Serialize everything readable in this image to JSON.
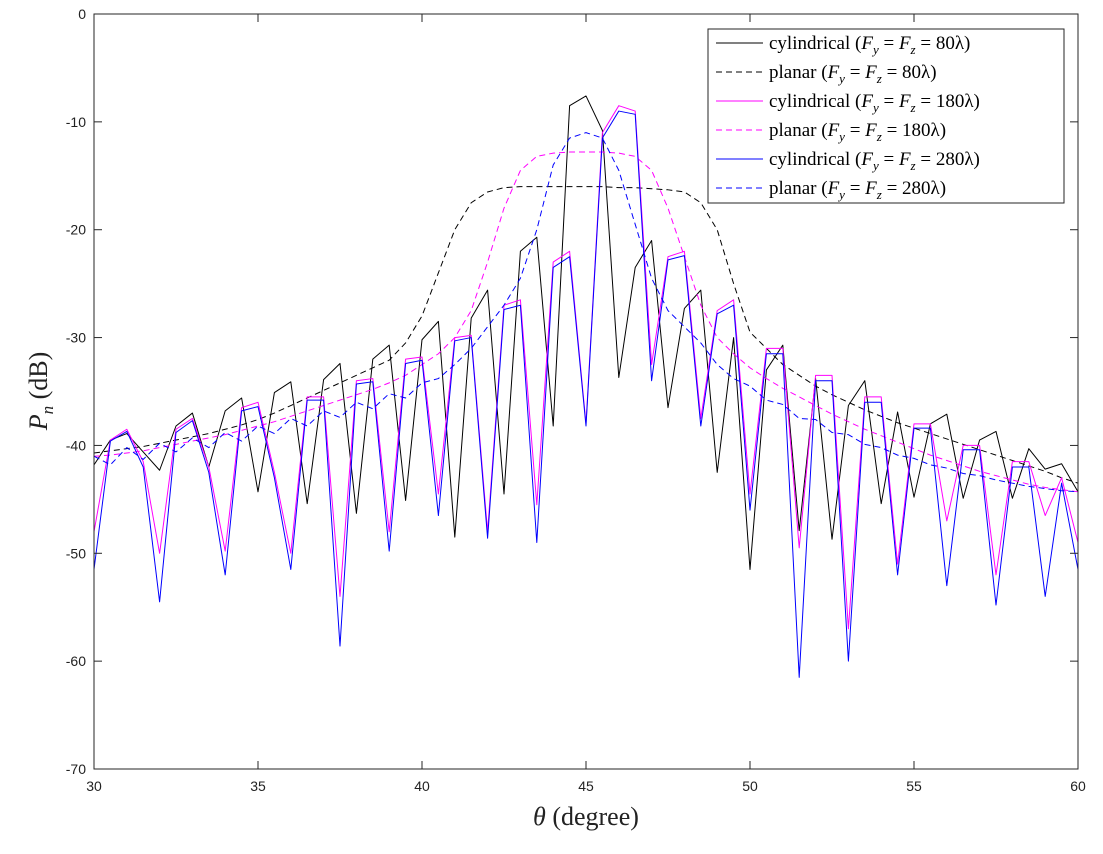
{
  "chart_data": {
    "type": "line",
    "xlabel": "θ (degree)",
    "ylabel": "P_n (dB)",
    "xlim": [
      30,
      60
    ],
    "ylim": [
      -70,
      0
    ],
    "xticks": [
      "30",
      "35",
      "40",
      "45",
      "50",
      "55",
      "60"
    ],
    "yticks": [
      "0",
      "-10",
      "-20",
      "-30",
      "-40",
      "-50",
      "-60",
      "-70"
    ],
    "grid": false,
    "legend_position": "top-right",
    "x": [
      30,
      30.5,
      31,
      31.5,
      32,
      32.5,
      33,
      33.5,
      34,
      34.5,
      35,
      35.5,
      36,
      36.5,
      37,
      37.5,
      38,
      38.5,
      39,
      39.5,
      40,
      40.5,
      41,
      41.5,
      42,
      42.5,
      43,
      43.5,
      44,
      44.5,
      45,
      45.5,
      46,
      46.5,
      47,
      47.5,
      48,
      48.5,
      49,
      49.5,
      50,
      50.5,
      51,
      51.5,
      52,
      52.5,
      53,
      53.5,
      54,
      54.5,
      55,
      55.5,
      56,
      56.5,
      57,
      57.5,
      58,
      58.5,
      59,
      59.5,
      60
    ],
    "series": [
      {
        "name": "cylindrical (F_y = F_z = 80λ)",
        "color": "#000000",
        "dash": "solid",
        "y": [
          -41.8,
          -39.5,
          -38.9,
          -40.6,
          -42.3,
          -38.2,
          -37.0,
          -42.0,
          -36.8,
          -35.6,
          -44.3,
          -35.1,
          -34.1,
          -45.4,
          -33.9,
          -32.4,
          -46.3,
          -32.0,
          -30.7,
          -45.1,
          -30.2,
          -28.5,
          -48.5,
          -28.2,
          -25.6,
          -44.5,
          -22.0,
          -20.7,
          -38.2,
          -8.5,
          -7.6,
          -10.8,
          -33.7,
          -23.5,
          -21.0,
          -36.5,
          -27.3,
          -25.6,
          -42.5,
          -30.0,
          -51.5,
          -33.0,
          -30.7,
          -47.9,
          -33.8,
          -48.7,
          -36.3,
          -34.0,
          -45.4,
          -36.9,
          -44.8,
          -38.0,
          -37.1,
          -44.9,
          -39.5,
          -38.7,
          -44.9,
          -40.3,
          -42.2,
          -41.7,
          -44.3
        ]
      },
      {
        "name": "planar (F_y = F_z = 80λ)",
        "color": "#000000",
        "dash": "dashed",
        "y": [
          -40.7,
          -40.5,
          -40.3,
          -40.1,
          -39.8,
          -39.5,
          -39.2,
          -38.9,
          -38.5,
          -38.1,
          -37.6,
          -37.0,
          -36.3,
          -35.6,
          -34.9,
          -34.2,
          -33.5,
          -32.8,
          -32.1,
          -30.5,
          -28.0,
          -24.0,
          -20.0,
          -17.5,
          -16.5,
          -16.1,
          -16.0,
          -16.0,
          -16.0,
          -16.0,
          -16.0,
          -16.0,
          -16.1,
          -16.1,
          -16.2,
          -16.3,
          -16.5,
          -17.5,
          -20.0,
          -25.0,
          -29.5,
          -31.0,
          -32.5,
          -33.5,
          -34.5,
          -35.3,
          -36.0,
          -36.7,
          -37.3,
          -37.9,
          -38.4,
          -38.9,
          -39.4,
          -39.9,
          -40.4,
          -40.9,
          -41.4,
          -41.9,
          -42.4,
          -43.0,
          -43.5
        ]
      },
      {
        "name": "cylindrical (F_y = F_z = 180λ)",
        "color": "#ff00ff",
        "dash": "solid",
        "y": [
          -48.0,
          -39.5,
          -38.5,
          -41.5,
          -50.0,
          -38.5,
          -37.5,
          -42.0,
          -49.8,
          -36.5,
          -36.0,
          -42.5,
          -50.0,
          -35.5,
          -35.5,
          -54.0,
          -34.0,
          -33.8,
          -48.0,
          -32.0,
          -31.8,
          -44.5,
          -30.0,
          -29.8,
          -48.0,
          -27.0,
          -26.5,
          -45.5,
          -23.0,
          -22.0,
          -38.0,
          -11.0,
          -8.5,
          -9.0,
          -32.5,
          -22.5,
          -22.0,
          -37.5,
          -27.5,
          -26.5,
          -44.5,
          -31.0,
          -31.0,
          -49.5,
          -33.5,
          -33.5,
          -57.0,
          -35.5,
          -35.5,
          -51.0,
          -38.0,
          -38.0,
          -47.0,
          -40.0,
          -40.0,
          -52.0,
          -41.5,
          -41.5,
          -46.5,
          -43.0,
          -49.0
        ]
      },
      {
        "name": "planar (F_y = F_z = 180λ)",
        "color": "#ff00ff",
        "dash": "dashed",
        "y": [
          -41.0,
          -40.9,
          -40.7,
          -40.5,
          -40.2,
          -39.9,
          -39.6,
          -39.3,
          -39.0,
          -38.6,
          -38.2,
          -37.8,
          -37.3,
          -36.8,
          -36.3,
          -35.8,
          -35.3,
          -34.8,
          -34.2,
          -33.5,
          -32.5,
          -31.5,
          -30.0,
          -27.5,
          -23.0,
          -18.0,
          -14.5,
          -13.2,
          -12.9,
          -12.8,
          -12.8,
          -12.8,
          -12.9,
          -13.2,
          -14.5,
          -18.0,
          -22.5,
          -27.0,
          -30.0,
          -31.5,
          -32.8,
          -33.8,
          -34.7,
          -35.5,
          -36.3,
          -37.1,
          -37.8,
          -38.5,
          -39.1,
          -39.7,
          -40.3,
          -40.9,
          -41.4,
          -41.9,
          -42.4,
          -42.8,
          -43.2,
          -43.6,
          -43.9,
          -44.1,
          -44.3
        ]
      },
      {
        "name": "cylindrical (F_y = F_z = 280λ)",
        "color": "#0000ff",
        "dash": "solid",
        "y": [
          -51.5,
          -39.6,
          -38.7,
          -42.0,
          -54.5,
          -38.8,
          -37.7,
          -42.5,
          -52.0,
          -36.8,
          -36.4,
          -43.0,
          -51.5,
          -35.8,
          -35.8,
          -58.6,
          -34.3,
          -34.1,
          -49.8,
          -32.4,
          -32.1,
          -46.5,
          -30.3,
          -30.0,
          -48.6,
          -27.4,
          -27.0,
          -49.0,
          -23.5,
          -22.5,
          -38.2,
          -11.5,
          -9.0,
          -9.3,
          -34.0,
          -22.8,
          -22.4,
          -38.2,
          -27.8,
          -27.0,
          -46.0,
          -31.5,
          -31.5,
          -61.5,
          -34.0,
          -34.0,
          -60.0,
          -36.0,
          -36.0,
          -52.0,
          -38.4,
          -38.4,
          -53.0,
          -40.4,
          -40.4,
          -54.8,
          -42.0,
          -42.0,
          -54.0,
          -43.5,
          -51.5
        ]
      },
      {
        "name": "planar (F_y = F_z = 280λ)",
        "color": "#0000ff",
        "dash": "dashed",
        "y": [
          -41.0,
          -41.8,
          -40.2,
          -41.3,
          -39.8,
          -40.6,
          -39.3,
          -40.2,
          -38.8,
          -39.6,
          -38.2,
          -38.9,
          -37.5,
          -38.2,
          -36.8,
          -37.4,
          -36.0,
          -36.6,
          -35.2,
          -35.6,
          -34.2,
          -33.8,
          -32.5,
          -31.0,
          -29.0,
          -27.0,
          -24.5,
          -20.0,
          -14.0,
          -11.5,
          -11.0,
          -11.5,
          -14.5,
          -19.5,
          -24.5,
          -27.5,
          -29.0,
          -30.5,
          -32.5,
          -33.8,
          -34.5,
          -35.8,
          -36.2,
          -37.5,
          -37.6,
          -38.8,
          -39.0,
          -39.9,
          -40.2,
          -40.9,
          -41.2,
          -41.8,
          -42.1,
          -42.6,
          -42.8,
          -43.2,
          -43.5,
          -43.8,
          -44.0,
          -44.2,
          -44.3
        ]
      }
    ]
  },
  "legend": {
    "entries": [
      {
        "prefix": "cylindrical",
        "f_value": "80λ"
      },
      {
        "prefix": "planar",
        "f_value": "80λ"
      },
      {
        "prefix": "cylindrical",
        "f_value": "180λ"
      },
      {
        "prefix": "planar",
        "f_value": "180λ"
      },
      {
        "prefix": "cylindrical",
        "f_value": "280λ"
      },
      {
        "prefix": "planar",
        "f_value": "280λ"
      }
    ]
  },
  "labels": {
    "x_axis_symbol": "θ",
    "x_axis_unit": " (degree)",
    "y_axis_symbol": "P",
    "y_axis_subscript": "n",
    "y_axis_unit": " (dB)"
  }
}
